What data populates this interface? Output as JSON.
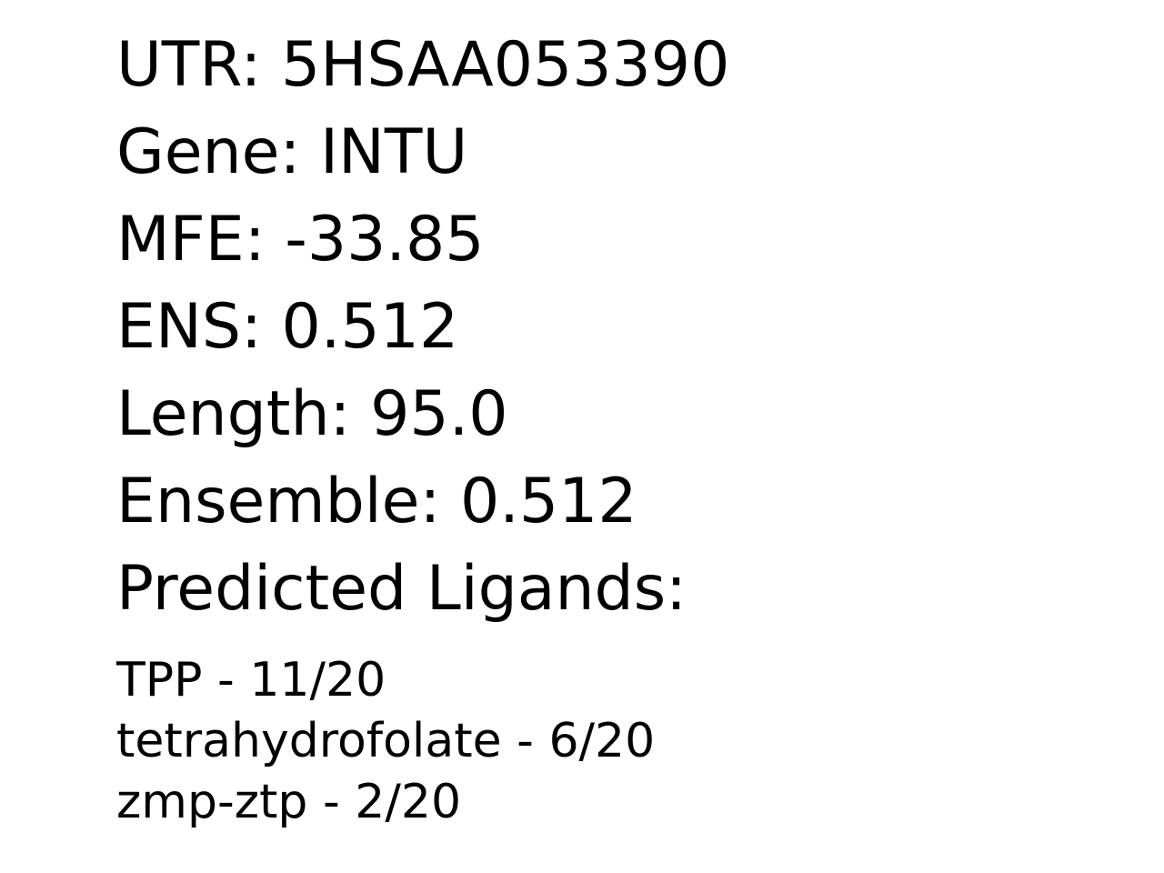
{
  "fields": [
    {
      "label": "UTR:",
      "value": "5HSAA053390"
    },
    {
      "label": "Gene:",
      "value": "INTU"
    },
    {
      "label": "MFE:",
      "value": "-33.85"
    },
    {
      "label": "ENS:",
      "value": "0.512"
    },
    {
      "label": "Length:",
      "value": "95.0"
    },
    {
      "label": "Ensemble:",
      "value": "0.512"
    }
  ],
  "ligands_heading": "Predicted Ligands:",
  "ligands": [
    {
      "name": "TPP",
      "score": "11/20"
    },
    {
      "name": "tetrahydrofolate",
      "score": "6/20"
    },
    {
      "name": "zmp-ztp",
      "score": "2/20"
    }
  ]
}
